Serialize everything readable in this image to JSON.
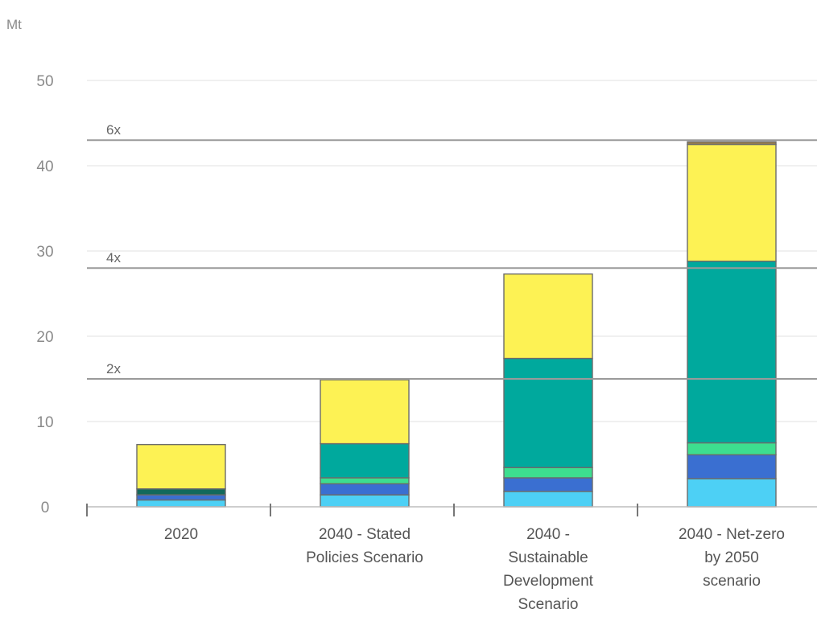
{
  "chart_data": {
    "type": "bar",
    "stacked": true,
    "ylabel": "Mt",
    "ylim": [
      0,
      50
    ],
    "yticks": [
      0,
      10,
      20,
      30,
      40,
      50
    ],
    "grid": true,
    "categories": [
      [
        "2020"
      ],
      [
        "2040 - Stated",
        "Policies Scenario"
      ],
      [
        "2040 -",
        "Sustainable",
        "Development",
        "Scenario"
      ],
      [
        "2040 - Net-zero",
        "by 2050",
        "scenario"
      ]
    ],
    "series": [
      {
        "color": "#4dd0f5",
        "values": [
          0.8,
          1.4,
          1.8,
          3.3
        ]
      },
      {
        "color": "#3a6fd1",
        "values": [
          0.6,
          1.3,
          1.6,
          2.8
        ]
      },
      {
        "color": "#3dde8f",
        "values": [
          0.0,
          0.7,
          1.2,
          1.4
        ]
      },
      {
        "color": "#12695c",
        "values": [
          0.7,
          0.0,
          0.0,
          0.0
        ]
      },
      {
        "color": "#00a99d",
        "values": [
          0.0,
          4.0,
          12.8,
          21.3
        ]
      },
      {
        "color": "#fdf254",
        "values": [
          5.2,
          7.5,
          9.9,
          13.7
        ]
      },
      {
        "color": "#9a7f4c",
        "values": [
          0.0,
          0.0,
          0.0,
          0.3
        ]
      }
    ],
    "reference_lines": [
      {
        "label": "6x",
        "value": 43.0
      },
      {
        "label": "4x",
        "value": 28.0
      },
      {
        "label": "2x",
        "value": 15.0
      }
    ]
  }
}
